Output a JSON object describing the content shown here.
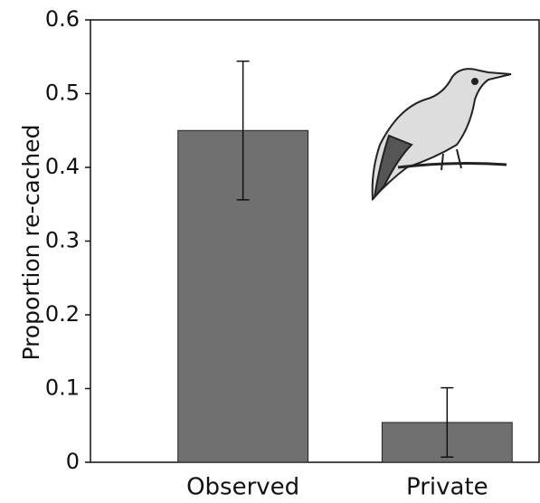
{
  "chart_data": {
    "type": "bar",
    "y_label": "Proportion re-cached",
    "categories": [
      "Observed",
      "Private"
    ],
    "values": [
      0.45,
      0.054
    ],
    "errors": [
      0.094,
      0.047
    ],
    "color": "#707070",
    "ylim": [
      0,
      0.6
    ],
    "yticks": [
      0,
      0.1,
      0.2,
      0.3,
      0.4,
      0.5,
      0.6
    ]
  }
}
